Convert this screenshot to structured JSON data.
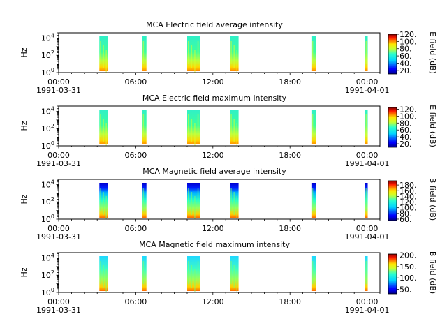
{
  "figure": {
    "panels": [
      {
        "title": "MCA  Electric field average intensity",
        "ylabel": "Hz",
        "cbar_label": "E field (dB)",
        "cbar_ticks": [
          "20.",
          "40.",
          "60.",
          "80.",
          "100.",
          "120."
        ]
      },
      {
        "title": "MCA  Electric field maximum intensity",
        "ylabel": "Hz",
        "cbar_label": "E field (dB)",
        "cbar_ticks": [
          "20.",
          "40.",
          "60.",
          "80.",
          "100.",
          "120."
        ]
      },
      {
        "title": "MCA  Magnetic field average intensity",
        "ylabel": "Hz",
        "cbar_label": "B field (dB)",
        "cbar_ticks": [
          "60.",
          "80.",
          "100.",
          "120.",
          "140.",
          "160.",
          "180."
        ]
      },
      {
        "title": "MCA  Magnetic field maximum intensity",
        "ylabel": "Hz",
        "cbar_label": "B field (dB)",
        "cbar_ticks": [
          "50.",
          "100.",
          "150.",
          "200."
        ]
      }
    ]
  },
  "chart_data": [
    {
      "type": "heatmap",
      "title": "MCA  Electric field average intensity",
      "xlabel": "",
      "ylabel": "Hz",
      "x_ticks": [
        "00:00",
        "06:00",
        "12:00",
        "18:00",
        "00:00"
      ],
      "x_tick_dates": [
        "1991-03-31",
        "1991-04-01"
      ],
      "x_range": [
        "1991-03-31T00:00",
        "1991-04-01T01:00"
      ],
      "y_scale": "log",
      "y_range": [
        1,
        40000
      ],
      "y_ticks": [
        1,
        100,
        10000
      ],
      "colorbar": {
        "label": "E field (dB)",
        "range": [
          10,
          120
        ],
        "ticks": [
          20,
          40,
          60,
          80,
          100,
          120
        ]
      },
      "data_intervals": [
        [
          "1991-03-31T03:10",
          "1991-03-31T03:50"
        ],
        [
          "1991-03-31T06:30",
          "1991-03-31T06:50"
        ],
        [
          "1991-03-31T10:00",
          "1991-03-31T11:00"
        ],
        [
          "1991-03-31T13:20",
          "1991-03-31T14:00"
        ],
        [
          "1991-03-31T19:40",
          "1991-03-31T20:00"
        ],
        [
          "1991-03-31T23:50",
          "1991-04-01T00:00"
        ]
      ],
      "cmap": "jet"
    },
    {
      "type": "heatmap",
      "title": "MCA  Electric field maximum intensity",
      "xlabel": "",
      "ylabel": "Hz",
      "x_ticks": [
        "00:00",
        "06:00",
        "12:00",
        "18:00",
        "00:00"
      ],
      "x_tick_dates": [
        "1991-03-31",
        "1991-04-01"
      ],
      "x_range": [
        "1991-03-31T00:00",
        "1991-04-01T01:00"
      ],
      "y_scale": "log",
      "y_range": [
        1,
        40000
      ],
      "y_ticks": [
        1,
        100,
        10000
      ],
      "colorbar": {
        "label": "E field (dB)",
        "range": [
          10,
          125
        ],
        "ticks": [
          20,
          40,
          60,
          80,
          100,
          120
        ]
      },
      "data_intervals": [
        [
          "1991-03-31T03:10",
          "1991-03-31T03:50"
        ],
        [
          "1991-03-31T06:30",
          "1991-03-31T06:50"
        ],
        [
          "1991-03-31T10:00",
          "1991-03-31T11:00"
        ],
        [
          "1991-03-31T13:20",
          "1991-03-31T14:00"
        ],
        [
          "1991-03-31T19:40",
          "1991-03-31T20:00"
        ],
        [
          "1991-03-31T23:50",
          "1991-04-01T00:00"
        ]
      ],
      "cmap": "jet"
    },
    {
      "type": "heatmap",
      "title": "MCA  Magnetic field average intensity",
      "xlabel": "",
      "ylabel": "Hz",
      "x_ticks": [
        "00:00",
        "06:00",
        "12:00",
        "18:00",
        "00:00"
      ],
      "x_tick_dates": [
        "1991-03-31",
        "1991-04-01"
      ],
      "x_range": [
        "1991-03-31T00:00",
        "1991-04-01T01:00"
      ],
      "y_scale": "log",
      "y_range": [
        1,
        40000
      ],
      "y_ticks": [
        1,
        100,
        10000
      ],
      "colorbar": {
        "label": "B field (dB)",
        "range": [
          55,
          195
        ],
        "ticks": [
          60,
          80,
          100,
          120,
          140,
          160,
          180
        ]
      },
      "data_intervals": [
        [
          "1991-03-31T03:10",
          "1991-03-31T03:50"
        ],
        [
          "1991-03-31T06:30",
          "1991-03-31T06:50"
        ],
        [
          "1991-03-31T10:00",
          "1991-03-31T11:00"
        ],
        [
          "1991-03-31T13:20",
          "1991-03-31T14:00"
        ],
        [
          "1991-03-31T19:40",
          "1991-03-31T20:00"
        ],
        [
          "1991-03-31T23:50",
          "1991-04-01T00:00"
        ]
      ],
      "cmap": "jet"
    },
    {
      "type": "heatmap",
      "title": "MCA  Magnetic field maximum intensity",
      "xlabel": "",
      "ylabel": "Hz",
      "x_ticks": [
        "00:00",
        "06:00",
        "12:00",
        "18:00",
        "00:00"
      ],
      "x_tick_dates": [
        "1991-03-31",
        "1991-04-01"
      ],
      "x_range": [
        "1991-03-31T00:00",
        "1991-04-01T01:00"
      ],
      "y_scale": "log",
      "y_range": [
        1,
        40000
      ],
      "y_ticks": [
        1,
        100,
        10000
      ],
      "colorbar": {
        "label": "B field (dB)",
        "range": [
          30,
          205
        ],
        "ticks": [
          50,
          100,
          150,
          200
        ]
      },
      "data_intervals": [
        [
          "1991-03-31T03:10",
          "1991-03-31T03:50"
        ],
        [
          "1991-03-31T06:30",
          "1991-03-31T06:50"
        ],
        [
          "1991-03-31T10:00",
          "1991-03-31T11:00"
        ],
        [
          "1991-03-31T13:20",
          "1991-03-31T14:00"
        ],
        [
          "1991-03-31T19:40",
          "1991-03-31T20:00"
        ],
        [
          "1991-03-31T23:50",
          "1991-04-01T00:00"
        ]
      ],
      "cmap": "jet"
    }
  ]
}
